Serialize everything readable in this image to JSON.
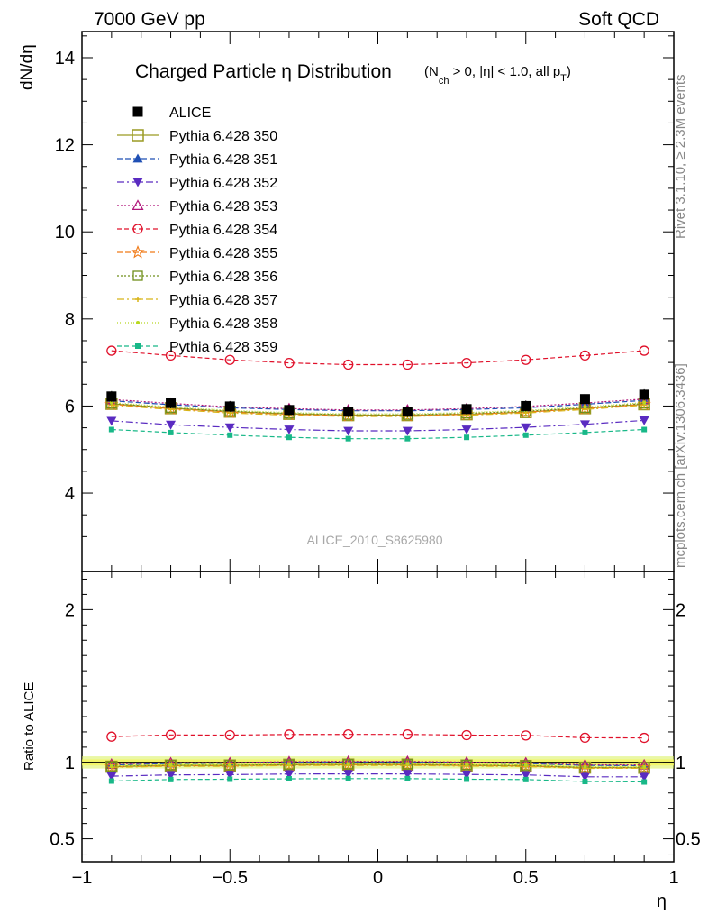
{
  "header": {
    "left": "7000 GeV pp",
    "right": "Soft QCD"
  },
  "side": {
    "rivet": "Rivet 3.1.10, ≥ 2.3M events",
    "mcplots": "mcplots.cern.ch [arXiv:1306.3436]"
  },
  "chart_data": {
    "type": "scatter",
    "title": "Charged Particle η Distribution",
    "title_cuts": "(N_ch > 0, |η| < 1.0, all p_T)",
    "analysis_label": "ALICE_2010_S8625980",
    "xlabel": "η",
    "ylabel": "dN/dη",
    "ratio_ylabel": "Ratio to ALICE",
    "xlim": [
      -1.0,
      1.0
    ],
    "ylim": [
      2.2,
      14.6
    ],
    "ratio_ylim": [
      0.35,
      2.25
    ],
    "xticks": [
      -1,
      -0.5,
      0,
      0.5,
      1
    ],
    "xtick_labels": [
      "−1",
      "−0.5",
      "0",
      "0.5",
      "1"
    ],
    "yticks": [
      4,
      6,
      8,
      10,
      12,
      14
    ],
    "ratio_yticks": [
      0.5,
      1,
      2
    ],
    "x": [
      -0.9,
      -0.7,
      -0.5,
      -0.3,
      -0.1,
      0.1,
      0.3,
      0.5,
      0.7,
      0.9
    ],
    "data": {
      "name": "ALICE",
      "values": [
        6.22,
        6.07,
        5.99,
        5.91,
        5.87,
        5.87,
        5.93,
        6.0,
        6.16,
        6.26
      ],
      "color": "#000000"
    },
    "band_color": "#d8f05a",
    "series": [
      {
        "name": "Pythia 6.428 350",
        "color": "#9a9a22",
        "dash": "",
        "marker": "open-square-large",
        "values": [
          6.05,
          5.95,
          5.87,
          5.82,
          5.79,
          5.79,
          5.81,
          5.86,
          5.95,
          6.04
        ],
        "ratio": [
          0.972,
          0.98,
          0.98,
          0.985,
          0.986,
          0.986,
          0.98,
          0.977,
          0.966,
          0.965
        ]
      },
      {
        "name": "Pythia 6.428 351",
        "color": "#1f4fb4",
        "dash": "6,3",
        "marker": "filled-triangle",
        "values": [
          6.12,
          6.03,
          5.96,
          5.92,
          5.89,
          5.89,
          5.92,
          5.96,
          6.04,
          6.13
        ],
        "ratio": [
          0.984,
          0.993,
          0.995,
          1.002,
          1.003,
          1.003,
          0.998,
          0.993,
          0.981,
          0.979
        ]
      },
      {
        "name": "Pythia 6.428 352",
        "color": "#5a2bc1",
        "dash": "8,3,2,3",
        "marker": "filled-triangle-down",
        "values": [
          5.66,
          5.57,
          5.51,
          5.46,
          5.43,
          5.43,
          5.46,
          5.51,
          5.58,
          5.67
        ],
        "ratio": [
          0.91,
          0.918,
          0.92,
          0.924,
          0.925,
          0.925,
          0.921,
          0.918,
          0.906,
          0.906
        ]
      },
      {
        "name": "Pythia 6.428 353",
        "color": "#b0157a",
        "dash": "2,2",
        "marker": "open-triangle",
        "values": [
          6.15,
          6.06,
          5.98,
          5.94,
          5.91,
          5.91,
          5.94,
          5.99,
          6.07,
          6.16
        ],
        "ratio": [
          0.989,
          0.998,
          0.998,
          1.005,
          1.007,
          1.007,
          1.002,
          0.998,
          0.985,
          0.984
        ]
      },
      {
        "name": "Pythia 6.428 354",
        "color": "#e0102a",
        "dash": "5,3",
        "marker": "open-circle",
        "values": [
          7.27,
          7.16,
          7.06,
          6.99,
          6.95,
          6.95,
          6.99,
          7.06,
          7.16,
          7.27
        ],
        "ratio": [
          1.169,
          1.18,
          1.179,
          1.183,
          1.184,
          1.184,
          1.179,
          1.177,
          1.162,
          1.161
        ]
      },
      {
        "name": "Pythia 6.428 355",
        "color": "#f07a18",
        "dash": "6,3",
        "marker": "open-star",
        "values": [
          6.04,
          5.94,
          5.86,
          5.81,
          5.78,
          5.78,
          5.81,
          5.86,
          5.94,
          6.04
        ],
        "ratio": [
          0.971,
          0.979,
          0.978,
          0.983,
          0.985,
          0.985,
          0.98,
          0.977,
          0.964,
          0.965
        ]
      },
      {
        "name": "Pythia 6.428 356",
        "color": "#6f8f1a",
        "dash": "2,2",
        "marker": "open-square",
        "values": [
          6.06,
          5.96,
          5.88,
          5.83,
          5.8,
          5.8,
          5.83,
          5.88,
          5.96,
          6.06
        ],
        "ratio": [
          0.974,
          0.982,
          0.982,
          0.986,
          0.988,
          0.988,
          0.983,
          0.98,
          0.968,
          0.968
        ]
      },
      {
        "name": "Pythia 6.428 357",
        "color": "#d8b418",
        "dash": "8,3,2,3",
        "marker": "small-cross",
        "values": [
          6.02,
          5.92,
          5.84,
          5.79,
          5.76,
          5.76,
          5.79,
          5.84,
          5.92,
          6.02
        ],
        "ratio": [
          0.968,
          0.975,
          0.975,
          0.98,
          0.981,
          0.981,
          0.976,
          0.973,
          0.961,
          0.962
        ]
      },
      {
        "name": "Pythia 6.428 358",
        "color": "#b8d820",
        "dash": "1,2",
        "marker": "small-dot",
        "values": [
          6.08,
          5.98,
          5.9,
          5.85,
          5.82,
          5.82,
          5.85,
          5.9,
          5.98,
          6.08
        ],
        "ratio": [
          0.977,
          0.985,
          0.985,
          0.99,
          0.991,
          0.991,
          0.987,
          0.983,
          0.971,
          0.971
        ]
      },
      {
        "name": "Pythia 6.428 359",
        "color": "#18b888",
        "dash": "5,3",
        "marker": "small-filled-square",
        "values": [
          5.46,
          5.39,
          5.33,
          5.28,
          5.25,
          5.25,
          5.28,
          5.33,
          5.39,
          5.46
        ],
        "ratio": [
          0.878,
          0.888,
          0.89,
          0.893,
          0.894,
          0.894,
          0.89,
          0.888,
          0.875,
          0.872
        ]
      }
    ]
  }
}
